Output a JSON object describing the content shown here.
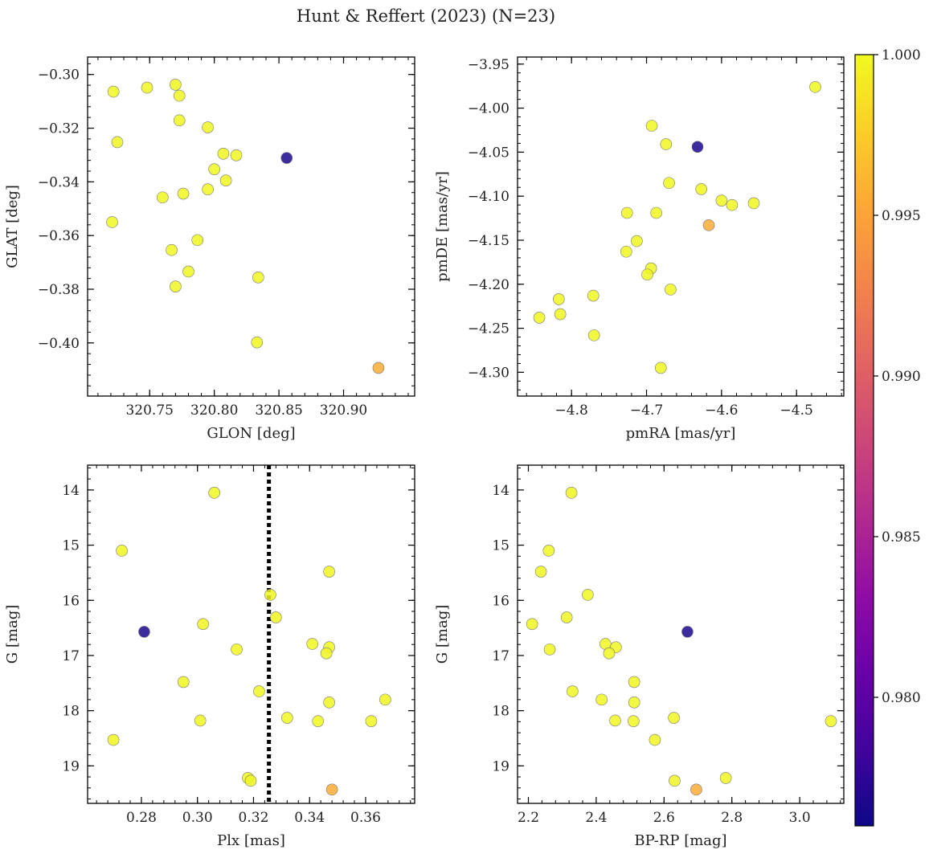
{
  "figure": {
    "title": "Hunt & Reffert (2023) (N=23)"
  },
  "colorbar": {
    "min": 0.976,
    "max": 1.0,
    "ticks": [
      0.98,
      0.985,
      0.99,
      0.995,
      1.0
    ],
    "tick_labels": [
      "0.980",
      "0.985",
      "0.990",
      "0.995",
      "1.000"
    ],
    "colormap": "plasma"
  },
  "chart_data": [
    {
      "type": "scatter",
      "xlabel": "GLON [deg]",
      "ylabel": "GLAT [deg]",
      "xlim": [
        320.702,
        320.955
      ],
      "ylim": [
        -0.4198,
        -0.2935
      ],
      "xticks": [
        320.75,
        320.8,
        320.85,
        320.9
      ],
      "xtick_labels": [
        "320.75",
        "320.80",
        "320.85",
        "320.90"
      ],
      "yticks": [
        -0.3,
        -0.32,
        -0.34,
        -0.36,
        -0.38,
        -0.4
      ],
      "ytick_labels": [
        "−0.30",
        "−0.32",
        "−0.34",
        "−0.36",
        "−0.38",
        "−0.40"
      ],
      "points": [
        {
          "x": 320.722,
          "y": -0.3064,
          "c": 0.9999
        },
        {
          "x": 320.748,
          "y": -0.3049,
          "c": 0.9999
        },
        {
          "x": 320.77,
          "y": -0.3038,
          "c": 0.9999
        },
        {
          "x": 320.773,
          "y": -0.3079,
          "c": 0.9999
        },
        {
          "x": 320.773,
          "y": -0.3171,
          "c": 0.9999
        },
        {
          "x": 320.795,
          "y": -0.3197,
          "c": 0.9999
        },
        {
          "x": 320.725,
          "y": -0.3252,
          "c": 0.9999
        },
        {
          "x": 320.807,
          "y": -0.3295,
          "c": 0.9999
        },
        {
          "x": 320.817,
          "y": -0.3301,
          "c": 0.9999
        },
        {
          "x": 320.856,
          "y": -0.3311,
          "c": 0.9766
        },
        {
          "x": 320.8,
          "y": -0.3353,
          "c": 0.9999
        },
        {
          "x": 320.809,
          "y": -0.3395,
          "c": 0.9999
        },
        {
          "x": 320.795,
          "y": -0.3428,
          "c": 0.9999
        },
        {
          "x": 320.776,
          "y": -0.3444,
          "c": 0.9999
        },
        {
          "x": 320.76,
          "y": -0.3458,
          "c": 0.9999
        },
        {
          "x": 320.721,
          "y": -0.355,
          "c": 0.9999
        },
        {
          "x": 320.787,
          "y": -0.3617,
          "c": 0.9999
        },
        {
          "x": 320.767,
          "y": -0.3654,
          "c": 0.9999
        },
        {
          "x": 320.78,
          "y": -0.3734,
          "c": 0.9999
        },
        {
          "x": 320.834,
          "y": -0.3756,
          "c": 0.9999
        },
        {
          "x": 320.77,
          "y": -0.379,
          "c": 0.9999
        },
        {
          "x": 320.833,
          "y": -0.3998,
          "c": 0.9999
        },
        {
          "x": 320.927,
          "y": -0.4093,
          "c": 0.9955
        }
      ]
    },
    {
      "type": "scatter",
      "xlabel": "pmRA [mas/yr]",
      "ylabel": "pmDE [mas/yr]",
      "xlim": [
        -4.872,
        -4.437
      ],
      "ylim": [
        -4.327,
        -3.942
      ],
      "xticks": [
        -4.8,
        -4.7,
        -4.6,
        -4.5
      ],
      "xtick_labels": [
        "−4.8",
        "−4.7",
        "−4.6",
        "−4.5"
      ],
      "yticks": [
        -3.95,
        -4.0,
        -4.05,
        -4.1,
        -4.15,
        -4.2,
        -4.25,
        -4.3
      ],
      "ytick_labels": [
        "−3.95",
        "−4.00",
        "−4.05",
        "−4.10",
        "−4.15",
        "−4.20",
        "−4.25",
        "−4.30"
      ],
      "points": [
        {
          "x": -4.475,
          "y": -3.976,
          "c": 0.9999
        },
        {
          "x": -4.693,
          "y": -4.02,
          "c": 0.9999
        },
        {
          "x": -4.674,
          "y": -4.041,
          "c": 0.9999
        },
        {
          "x": -4.632,
          "y": -4.044,
          "c": 0.9766
        },
        {
          "x": -4.67,
          "y": -4.085,
          "c": 0.9999
        },
        {
          "x": -4.627,
          "y": -4.092,
          "c": 0.9999
        },
        {
          "x": -4.6,
          "y": -4.105,
          "c": 0.9999
        },
        {
          "x": -4.586,
          "y": -4.11,
          "c": 0.9999
        },
        {
          "x": -4.557,
          "y": -4.108,
          "c": 0.9999
        },
        {
          "x": -4.726,
          "y": -4.119,
          "c": 0.9999
        },
        {
          "x": -4.687,
          "y": -4.119,
          "c": 0.9999
        },
        {
          "x": -4.617,
          "y": -4.133,
          "c": 0.9955
        },
        {
          "x": -4.713,
          "y": -4.151,
          "c": 0.9999
        },
        {
          "x": -4.727,
          "y": -4.163,
          "c": 0.9999
        },
        {
          "x": -4.694,
          "y": -4.182,
          "c": 0.9999
        },
        {
          "x": -4.699,
          "y": -4.189,
          "c": 0.9999
        },
        {
          "x": -4.668,
          "y": -4.206,
          "c": 0.9999
        },
        {
          "x": -4.771,
          "y": -4.213,
          "c": 0.9999
        },
        {
          "x": -4.817,
          "y": -4.217,
          "c": 0.9999
        },
        {
          "x": -4.815,
          "y": -4.234,
          "c": 0.9999
        },
        {
          "x": -4.843,
          "y": -4.238,
          "c": 0.9999
        },
        {
          "x": -4.77,
          "y": -4.258,
          "c": 0.9999
        },
        {
          "x": -4.681,
          "y": -4.295,
          "c": 0.9999
        }
      ]
    },
    {
      "type": "scatter",
      "xlabel": "Plx [mas]",
      "ylabel": "G [mag]",
      "xlim": [
        0.2608,
        0.3775
      ],
      "ylim": [
        19.68,
        13.55
      ],
      "vline": {
        "x": 0.3255,
        "style": "dotted"
      },
      "xticks": [
        0.28,
        0.3,
        0.32,
        0.34,
        0.36
      ],
      "xtick_labels": [
        "0.28",
        "0.30",
        "0.32",
        "0.34",
        "0.36"
      ],
      "yticks": [
        14,
        15,
        16,
        17,
        18,
        19
      ],
      "ytick_labels": [
        "14",
        "15",
        "16",
        "17",
        "18",
        "19"
      ],
      "points": [
        {
          "x": 0.306,
          "y": 14.05,
          "c": 0.9999
        },
        {
          "x": 0.273,
          "y": 15.1,
          "c": 0.9999
        },
        {
          "x": 0.347,
          "y": 15.48,
          "c": 0.9999
        },
        {
          "x": 0.326,
          "y": 15.9,
          "c": 0.9999
        },
        {
          "x": 0.328,
          "y": 16.31,
          "c": 0.9999
        },
        {
          "x": 0.302,
          "y": 16.43,
          "c": 0.9999
        },
        {
          "x": 0.281,
          "y": 16.57,
          "c": 0.9766
        },
        {
          "x": 0.341,
          "y": 16.79,
          "c": 0.9999
        },
        {
          "x": 0.347,
          "y": 16.85,
          "c": 0.9999
        },
        {
          "x": 0.314,
          "y": 16.89,
          "c": 0.9999
        },
        {
          "x": 0.346,
          "y": 16.96,
          "c": 0.9999
        },
        {
          "x": 0.295,
          "y": 17.48,
          "c": 0.9999
        },
        {
          "x": 0.322,
          "y": 17.65,
          "c": 0.9999
        },
        {
          "x": 0.367,
          "y": 17.8,
          "c": 0.9999
        },
        {
          "x": 0.347,
          "y": 17.85,
          "c": 0.9999
        },
        {
          "x": 0.332,
          "y": 18.13,
          "c": 0.9999
        },
        {
          "x": 0.301,
          "y": 18.18,
          "c": 0.9999
        },
        {
          "x": 0.343,
          "y": 18.19,
          "c": 0.9999
        },
        {
          "x": 0.362,
          "y": 18.19,
          "c": 0.9999
        },
        {
          "x": 0.27,
          "y": 18.53,
          "c": 0.9999
        },
        {
          "x": 0.318,
          "y": 19.22,
          "c": 0.9999
        },
        {
          "x": 0.319,
          "y": 19.27,
          "c": 0.9999
        },
        {
          "x": 0.348,
          "y": 19.43,
          "c": 0.9955
        }
      ]
    },
    {
      "type": "scatter",
      "xlabel": "BP-RP [mag]",
      "ylabel": "G [mag]",
      "xlim": [
        2.168,
        3.13
      ],
      "ylim": [
        19.68,
        13.55
      ],
      "xticks": [
        2.2,
        2.4,
        2.6,
        2.8,
        3.0
      ],
      "xtick_labels": [
        "2.2",
        "2.4",
        "2.6",
        "2.8",
        "3.0"
      ],
      "yticks": [
        14,
        15,
        16,
        17,
        18,
        19
      ],
      "ytick_labels": [
        "14",
        "15",
        "16",
        "17",
        "18",
        "19"
      ],
      "points": [
        {
          "x": 2.327,
          "y": 14.05,
          "c": 0.9999
        },
        {
          "x": 2.26,
          "y": 15.1,
          "c": 0.9999
        },
        {
          "x": 2.237,
          "y": 15.48,
          "c": 0.9999
        },
        {
          "x": 2.375,
          "y": 15.9,
          "c": 0.9999
        },
        {
          "x": 2.313,
          "y": 16.31,
          "c": 0.9999
        },
        {
          "x": 2.211,
          "y": 16.43,
          "c": 0.9999
        },
        {
          "x": 2.669,
          "y": 16.57,
          "c": 0.9766
        },
        {
          "x": 2.427,
          "y": 16.79,
          "c": 0.9999
        },
        {
          "x": 2.458,
          "y": 16.85,
          "c": 0.9999
        },
        {
          "x": 2.263,
          "y": 16.89,
          "c": 0.9999
        },
        {
          "x": 2.438,
          "y": 16.96,
          "c": 0.9999
        },
        {
          "x": 2.512,
          "y": 17.48,
          "c": 0.9999
        },
        {
          "x": 2.33,
          "y": 17.65,
          "c": 0.9999
        },
        {
          "x": 2.416,
          "y": 17.8,
          "c": 0.9999
        },
        {
          "x": 2.512,
          "y": 17.85,
          "c": 0.9999
        },
        {
          "x": 2.629,
          "y": 18.13,
          "c": 0.9999
        },
        {
          "x": 2.456,
          "y": 18.18,
          "c": 0.9999
        },
        {
          "x": 2.51,
          "y": 18.19,
          "c": 0.9999
        },
        {
          "x": 3.092,
          "y": 18.19,
          "c": 0.9999
        },
        {
          "x": 2.573,
          "y": 18.53,
          "c": 0.9999
        },
        {
          "x": 2.782,
          "y": 19.22,
          "c": 0.9999
        },
        {
          "x": 2.631,
          "y": 19.27,
          "c": 0.9999
        },
        {
          "x": 2.695,
          "y": 19.43,
          "c": 0.9955
        }
      ]
    }
  ]
}
